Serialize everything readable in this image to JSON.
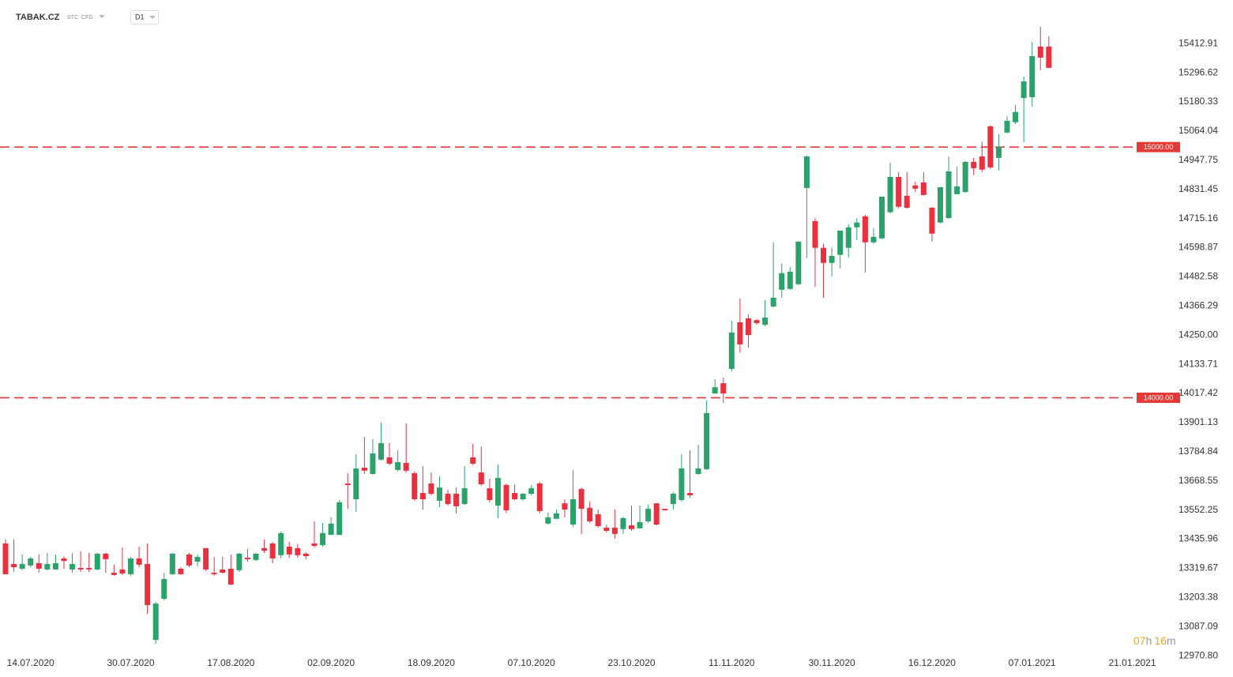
{
  "header": {
    "symbol": "TABAK.CZ",
    "tags": [
      "STC",
      "CFD"
    ],
    "interval": "D1"
  },
  "countdown": {
    "hours": "07",
    "h": "h",
    "minutes": "16",
    "m": "m"
  },
  "chart_data": {
    "type": "candlestick",
    "categories": [
      null,
      null,
      null,
      "14.07.2020",
      null,
      null,
      null,
      null,
      null,
      null,
      null,
      null,
      null,
      null,
      null,
      "30.07.2020",
      null,
      null,
      null,
      null,
      null,
      null,
      null,
      null,
      null,
      null,
      null,
      "17.08.2020",
      null,
      null,
      null,
      null,
      null,
      null,
      null,
      null,
      null,
      null,
      null,
      "02.09.2020",
      null,
      null,
      null,
      null,
      null,
      null,
      null,
      null,
      null,
      null,
      null,
      "18.09.2020",
      null,
      null,
      null,
      null,
      null,
      null,
      null,
      null,
      null,
      null,
      null,
      "07.10.2020",
      null,
      null,
      null,
      null,
      null,
      null,
      null,
      null,
      null,
      null,
      null,
      "23.10.2020",
      null,
      null,
      null,
      null,
      null,
      null,
      null,
      null,
      null,
      null,
      null,
      "11.11.2020",
      null,
      null,
      null,
      null,
      null,
      null,
      null,
      null,
      null,
      null,
      null,
      "30.11.2020",
      null,
      null,
      null,
      null,
      null,
      null,
      null,
      null,
      null,
      null,
      null,
      "16.12.2020",
      null,
      null,
      null,
      null,
      null,
      null,
      null,
      null,
      null,
      null,
      null,
      "07.01.2021",
      null,
      null,
      null,
      null,
      null,
      null,
      null,
      null,
      null,
      null,
      null,
      "21.01.2021"
    ],
    "open": [
      13419,
      13337,
      13318,
      13331,
      13340,
      13315,
      13315,
      13359,
      13315,
      13321,
      13321,
      13315,
      13378,
      13302,
      13315,
      13296,
      13359,
      13337,
      13034,
      13198,
      13296,
      13318,
      13375,
      13346,
      13400,
      13302,
      13315,
      13318,
      13312,
      13362,
      13353,
      13400,
      13419,
      13372,
      13406,
      13400,
      13378,
      13419,
      13412,
      13453,
      13453,
      13658,
      13595,
      13721,
      13696,
      13753,
      13762,
      13712,
      13740,
      13699,
      13620,
      13658,
      13589,
      13617,
      13617,
      13576,
      13762,
      13702,
      13639,
      13570,
      13652,
      13620,
      13595,
      13617,
      13658,
      13498,
      13517,
      13579,
      13494,
      13636,
      13561,
      13535,
      13482,
      13482,
      13476,
      13491,
      13479,
      13507,
      13579,
      13557,
      13576,
      13592,
      13620,
      13696,
      13715,
      14017,
      14058,
      14115,
      14301,
      14317,
      14310,
      14291,
      14364,
      14431,
      14434,
      14453,
      14837,
      14705,
      14598,
      14538,
      14570,
      14598,
      14680,
      14724,
      14620,
      14636,
      14740,
      14881,
      14806,
      14847,
      14859,
      14758,
      14699,
      14717,
      14812,
      14821,
      14941,
      14963,
      15083,
      14957,
      15058,
      15099,
      15196,
      15199,
      15401,
      15401,
      null,
      null,
      null,
      null,
      null,
      null,
      null,
      null,
      null,
      null
    ],
    "high": [
      13435,
      13435,
      13375,
      13365,
      13375,
      13381,
      13375,
      13368,
      13381,
      13387,
      13381,
      13381,
      13381,
      13334,
      13403,
      13365,
      13406,
      13419,
      13186,
      13302,
      13381,
      13324,
      13381,
      13375,
      13400,
      13365,
      13365,
      13375,
      13381,
      13397,
      13381,
      13435,
      13425,
      13466,
      13425,
      13416,
      13384,
      13507,
      13501,
      13523,
      13592,
      13699,
      13775,
      13844,
      13835,
      13901,
      13819,
      13790,
      13898,
      13706,
      13727,
      13702,
      13687,
      13633,
      13642,
      13727,
      13816,
      13806,
      13677,
      13734,
      13658,
      13655,
      13620,
      13652,
      13664,
      13542,
      13554,
      13595,
      13712,
      13642,
      13586,
      13554,
      13494,
      13554,
      13526,
      13570,
      13570,
      13573,
      13579,
      13557,
      13623,
      13775,
      13790,
      13813,
      13989,
      14074,
      14080,
      14307,
      14396,
      14333,
      14313,
      14390,
      14620,
      14535,
      14522,
      14623,
      14966,
      14717,
      14614,
      14598,
      14667,
      14692,
      14717,
      14730,
      14677,
      14802,
      14938,
      14900,
      14900,
      14862,
      14900,
      14762,
      14840,
      14963,
      14922,
      14944,
      14957,
      15022,
      15086,
      15051,
      15124,
      15168,
      15281,
      15420,
      15480,
      15442,
      null,
      null,
      null,
      null,
      null,
      null,
      null,
      null,
      null,
      null
    ],
    "low": [
      13296,
      13305,
      13312,
      13324,
      13302,
      13312,
      13315,
      13318,
      13302,
      13305,
      13305,
      13312,
      13302,
      13290,
      13293,
      13290,
      13324,
      13138,
      13019,
      13192,
      13293,
      13293,
      13324,
      13327,
      13309,
      13290,
      13299,
      13252,
      13305,
      13346,
      13349,
      13381,
      13340,
      13359,
      13362,
      13362,
      13356,
      13403,
      13406,
      13453,
      13453,
      13557,
      13545,
      13696,
      13693,
      13750,
      13731,
      13706,
      13702,
      13589,
      13554,
      13611,
      13564,
      13570,
      13539,
      13573,
      13731,
      13649,
      13583,
      13520,
      13539,
      13592,
      13589,
      13611,
      13539,
      13494,
      13517,
      13523,
      13485,
      13457,
      13501,
      13482,
      13463,
      13438,
      13457,
      13469,
      13479,
      13501,
      13491,
      13551,
      13554,
      13586,
      13601,
      13693,
      13712,
      14017,
      13979,
      14105,
      14181,
      14200,
      14291,
      14285,
      14361,
      14399,
      14431,
      14450,
      14557,
      14443,
      14399,
      14484,
      14516,
      14560,
      14629,
      14500,
      14614,
      14633,
      14736,
      14755,
      14755,
      14821,
      14806,
      14623,
      14696,
      14714,
      14812,
      14818,
      14888,
      14900,
      14913,
      14907,
      15055,
      15092,
      15020,
      15162,
      15307,
      15316,
      null,
      null,
      null,
      null,
      null,
      null,
      null,
      null,
      null,
      null
    ],
    "close": [
      13296,
      13324,
      13337,
      13359,
      13318,
      13337,
      13340,
      13349,
      13337,
      13315,
      13315,
      13378,
      13356,
      13293,
      13299,
      13359,
      13334,
      13173,
      13179,
      13277,
      13378,
      13296,
      13331,
      13365,
      13315,
      13296,
      13302,
      13255,
      13378,
      13356,
      13378,
      13390,
      13359,
      13460,
      13375,
      13372,
      13368,
      13409,
      13460,
      13498,
      13583,
      13652,
      13718,
      13709,
      13778,
      13819,
      13737,
      13743,
      13709,
      13595,
      13595,
      13617,
      13642,
      13576,
      13567,
      13639,
      13737,
      13655,
      13592,
      13680,
      13551,
      13595,
      13617,
      13639,
      13548,
      13523,
      13539,
      13554,
      13595,
      13557,
      13507,
      13488,
      13469,
      13457,
      13520,
      13476,
      13504,
      13557,
      13494,
      13551,
      13617,
      13718,
      13611,
      13718,
      13939,
      14042,
      14017,
      14260,
      14213,
      14250,
      14298,
      14320,
      14399,
      14497,
      14503,
      14623,
      14963,
      14598,
      14538,
      14566,
      14667,
      14680,
      14699,
      14620,
      14642,
      14802,
      14881,
      14762,
      14758,
      14834,
      14809,
      14655,
      14840,
      14903,
      14843,
      14941,
      14916,
      14910,
      14919,
      15001,
      15105,
      15140,
      15262,
      15363,
      15357,
      15316,
      null,
      null,
      null,
      null,
      null,
      null,
      null,
      null,
      null,
      null
    ],
    "up_color": "#2aa36b",
    "down_color": "#e8303f",
    "ylim": [
      12939.6,
      15586.8
    ],
    "yticks": [
      15412.91,
      15296.62,
      15180.33,
      15064.04,
      14947.75,
      14831.45,
      14715.16,
      14598.87,
      14482.58,
      14366.29,
      {
        "value": 14250,
        "label": "14250.00"
      },
      14133.71,
      14017.42,
      13901.13,
      13784.84,
      13668.55,
      13552.25,
      13435.96,
      13319.67,
      13203.38,
      13087.09,
      {
        "value": 12970.8,
        "label": "12970.80"
      }
    ],
    "grid": false,
    "levels": [
      {
        "value": 15000,
        "label": "15000.00"
      },
      {
        "value": 14000,
        "label": "14000.00"
      }
    ],
    "level_color": "#e53935"
  }
}
